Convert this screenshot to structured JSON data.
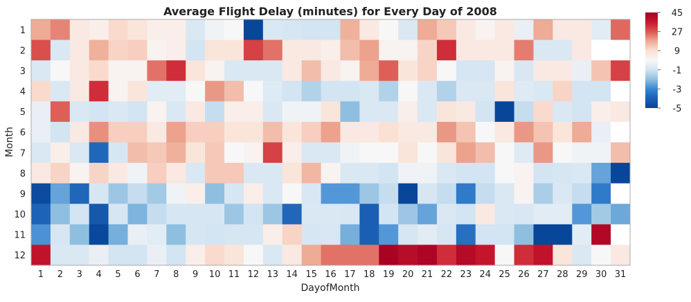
{
  "chart_data": {
    "type": "heatmap",
    "title": "Average Flight Delay (minutes) for Every Day of 2008",
    "xlabel": "DayofMonth",
    "ylabel": "Month",
    "x": [
      "1",
      "2",
      "3",
      "4",
      "5",
      "6",
      "7",
      "8",
      "9",
      "10",
      "11",
      "12",
      "13",
      "14",
      "15",
      "16",
      "17",
      "18",
      "19",
      "20",
      "21",
      "22",
      "23",
      "24",
      "25",
      "26",
      "27",
      "28",
      "29",
      "30",
      "31"
    ],
    "y": [
      "1",
      "2",
      "3",
      "4",
      "5",
      "6",
      "7",
      "8",
      "9",
      "10",
      "11",
      "12"
    ],
    "legend": {
      "placement": "right",
      "ticks": [
        45,
        27,
        9,
        -1,
        -3,
        -5
      ]
    },
    "color_low": "#08469a",
    "color_mid": "#f7f7f7",
    "color_high": "#a50022",
    "values": [
      [
        18,
        22,
        7,
        6,
        10,
        8,
        6,
        6,
        0,
        3,
        4,
        -5,
        0,
        -0.5,
        -1,
        -1,
        17,
        7,
        4,
        0,
        18,
        13,
        7,
        5,
        7,
        2,
        18,
        7,
        7,
        1,
        25
      ],
      [
        28,
        0,
        7,
        17,
        11,
        12,
        5,
        6,
        -1,
        8,
        8,
        30,
        24,
        7,
        7,
        6,
        15,
        19,
        5,
        5,
        11,
        33,
        7,
        7,
        7,
        23,
        0,
        0,
        7,
        null,
        null
      ],
      [
        0,
        4,
        7,
        10,
        5,
        5,
        24,
        33,
        8,
        5,
        0,
        0,
        0,
        7,
        15,
        7,
        5,
        18,
        26,
        8,
        11,
        4,
        -0.5,
        -0.5,
        5,
        -0.3,
        7,
        7,
        2,
        14,
        30
      ],
      [
        10,
        0,
        7,
        33,
        5,
        8,
        1,
        1,
        4,
        20,
        15,
        4,
        0.5,
        -1,
        -1.5,
        -1,
        -1,
        0,
        -1.5,
        4,
        0,
        -1.5,
        0,
        0,
        8,
        0.5,
        0,
        11,
        -1,
        -1,
        null
      ],
      [
        2,
        26,
        0,
        -1,
        0,
        -1,
        5,
        0,
        7,
        -1.2,
        6,
        6,
        0,
        3,
        3,
        8,
        -2,
        0,
        0,
        6,
        0,
        8,
        7,
        -1,
        -5,
        -1.2,
        10,
        0,
        -1,
        6,
        7
      ],
      [
        2,
        -1,
        7,
        21,
        12,
        12,
        7,
        19,
        12,
        12,
        8,
        8,
        15,
        8,
        12,
        19,
        7,
        7,
        9,
        7,
        7,
        20,
        14,
        4,
        7,
        20,
        14,
        8,
        18,
        2,
        null
      ],
      [
        0,
        6,
        0,
        -3.8,
        -0.5,
        15,
        13,
        17,
        8,
        13,
        4,
        5,
        30,
        6,
        0,
        0,
        3,
        4,
        4,
        8,
        4,
        8,
        19,
        15,
        4,
        0.5,
        20,
        4,
        3,
        3,
        15
      ],
      [
        7,
        11,
        5,
        11,
        7,
        3,
        12,
        7,
        0,
        13,
        13,
        0,
        0,
        8,
        16,
        5,
        0,
        0,
        -1,
        3,
        3,
        0,
        -1,
        -1,
        4,
        5,
        -1,
        -0.5,
        0,
        -2.5,
        -5
      ],
      [
        -4.8,
        -2.5,
        -3.8,
        -0.5,
        -1.8,
        -1.2,
        -1.7,
        3,
        6,
        -2,
        -0.5,
        6,
        0,
        4,
        -0.3,
        -2.7,
        -2.7,
        -1.8,
        -1.2,
        -5,
        -0.5,
        -1.2,
        -3.3,
        -1.2,
        0,
        5,
        -1.6,
        0,
        -1.2,
        -3.3,
        null
      ],
      [
        -3.9,
        -2,
        -1,
        -4.3,
        -0.5,
        -2.2,
        -1.2,
        -0.5,
        -0.5,
        -0.5,
        -1.8,
        -1,
        -1.8,
        -3.8,
        0,
        0,
        -0.2,
        -4,
        -1,
        -1.8,
        -2.5,
        0,
        -1,
        7,
        0,
        -0.3,
        1,
        1,
        -2.7,
        -1.7,
        -2.4
      ],
      [
        -2.8,
        -0.5,
        -2,
        -4.9,
        -2.3,
        2,
        1,
        -2,
        -0.5,
        -1,
        -0.5,
        -0.5,
        6,
        11,
        -0.5,
        -0.3,
        -2.3,
        -4,
        -2.7,
        -0.5,
        1,
        -0.5,
        -3.6,
        -1,
        -1,
        -2,
        -5,
        -5,
        1,
        42,
        null
      ],
      [
        38,
        0,
        0,
        2,
        -1,
        -1,
        2,
        -1,
        6,
        10,
        8,
        4,
        0,
        7,
        18,
        24,
        24,
        24,
        44,
        40,
        43,
        33,
        41,
        37,
        4,
        33,
        38,
        8,
        0,
        4,
        7
      ]
    ]
  }
}
